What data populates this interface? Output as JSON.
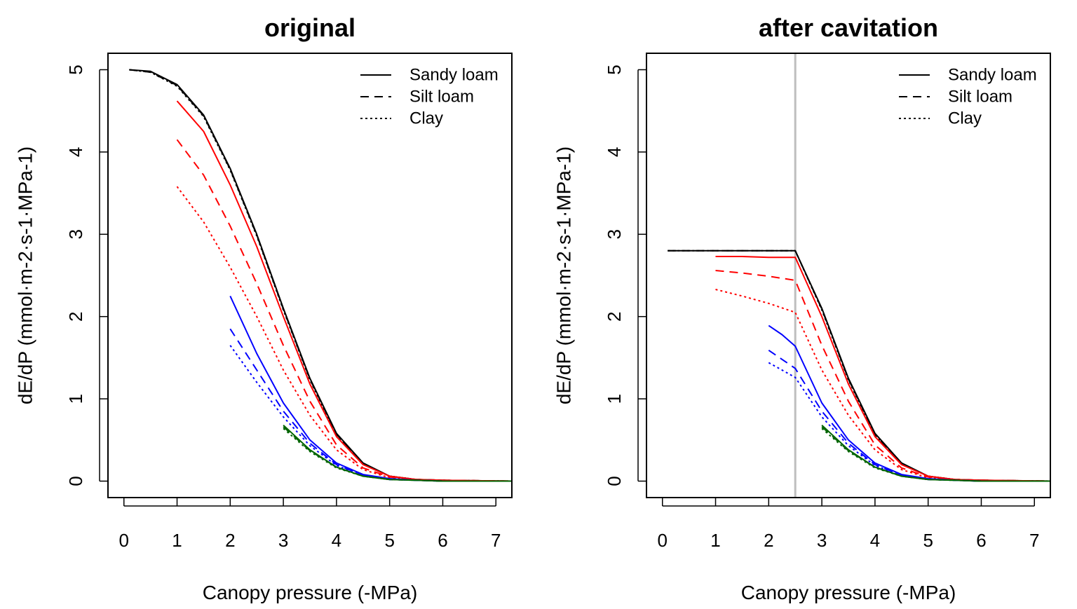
{
  "colors": {
    "black": "#000000",
    "red": "#ff0000",
    "blue": "#0000ff",
    "green": "#006400",
    "ref_line": "#bebebe"
  },
  "chart_data": [
    {
      "type": "line",
      "title": "original",
      "xlabel": "Canopy pressure (-MPa)",
      "ylabel": "dE/dP (mmol·m-2·s-1·MPa-1)",
      "xlim": [
        -0.3,
        7.3
      ],
      "ylim": [
        -0.2,
        5.2
      ],
      "xticks": [
        "0",
        "1",
        "2",
        "3",
        "4",
        "5",
        "6",
        "7"
      ],
      "yticks": [
        "0",
        "1",
        "2",
        "3",
        "4",
        "5"
      ],
      "legend": {
        "position": "top-right",
        "entries": [
          {
            "label": "Sandy loam",
            "linestyle": "solid"
          },
          {
            "label": "Silt loam",
            "linestyle": "dashed"
          },
          {
            "label": "Clay",
            "linestyle": "dotted"
          }
        ]
      },
      "vline": null,
      "series": [
        {
          "color": "black",
          "linestyle": "solid",
          "x": [
            0.1,
            0.5,
            1,
            1.5,
            2,
            2.5,
            3,
            3.5,
            4,
            4.5,
            5,
            5.5,
            6,
            7.3
          ],
          "y": [
            5.0,
            4.98,
            4.82,
            4.45,
            3.8,
            3.0,
            2.1,
            1.25,
            0.58,
            0.22,
            0.06,
            0.02,
            0.01,
            0.0
          ]
        },
        {
          "color": "black",
          "linestyle": "dashed",
          "x": [
            0.1,
            0.5,
            1,
            1.5,
            2,
            2.5,
            3,
            3.5,
            4,
            4.5,
            5,
            5.5,
            6,
            7.3
          ],
          "y": [
            5.0,
            4.97,
            4.81,
            4.44,
            3.79,
            2.99,
            2.09,
            1.24,
            0.57,
            0.21,
            0.06,
            0.02,
            0.01,
            0.0
          ]
        },
        {
          "color": "black",
          "linestyle": "dotted",
          "x": [
            0.1,
            0.5,
            1,
            1.5,
            2,
            2.5,
            3,
            3.5,
            4,
            4.5,
            5,
            5.5,
            6,
            7.3
          ],
          "y": [
            5.0,
            4.97,
            4.8,
            4.43,
            3.78,
            2.98,
            2.08,
            1.23,
            0.56,
            0.21,
            0.06,
            0.02,
            0.01,
            0.0
          ]
        },
        {
          "color": "red",
          "linestyle": "solid",
          "x": [
            1,
            1.5,
            2,
            2.5,
            3,
            3.5,
            4,
            4.5,
            5,
            5.5,
            6,
            7.3
          ],
          "y": [
            4.62,
            4.25,
            3.6,
            2.85,
            2.0,
            1.18,
            0.54,
            0.2,
            0.06,
            0.02,
            0.01,
            0.0
          ]
        },
        {
          "color": "red",
          "linestyle": "dashed",
          "x": [
            1,
            1.5,
            2,
            2.5,
            3,
            3.5,
            4,
            4.5,
            5,
            5.5,
            6,
            7.3
          ],
          "y": [
            4.15,
            3.72,
            3.1,
            2.4,
            1.65,
            0.97,
            0.44,
            0.16,
            0.05,
            0.02,
            0.01,
            0.0
          ]
        },
        {
          "color": "red",
          "linestyle": "dotted",
          "x": [
            1,
            1.5,
            2,
            2.5,
            3,
            3.5,
            4,
            4.5,
            5,
            5.5,
            6,
            7.3
          ],
          "y": [
            3.58,
            3.15,
            2.6,
            2.0,
            1.35,
            0.8,
            0.38,
            0.14,
            0.04,
            0.01,
            0.0,
            0.0
          ]
        },
        {
          "color": "blue",
          "linestyle": "solid",
          "x": [
            2,
            2.5,
            3,
            3.5,
            4,
            4.5,
            5,
            5.5,
            6,
            7.3
          ],
          "y": [
            2.25,
            1.55,
            0.95,
            0.5,
            0.22,
            0.08,
            0.03,
            0.01,
            0.0,
            0.0
          ]
        },
        {
          "color": "blue",
          "linestyle": "dashed",
          "x": [
            2,
            2.5,
            3,
            3.5,
            4,
            4.5,
            5,
            5.5,
            6,
            7.3
          ],
          "y": [
            1.85,
            1.35,
            0.85,
            0.46,
            0.2,
            0.07,
            0.02,
            0.01,
            0.0,
            0.0
          ]
        },
        {
          "color": "blue",
          "linestyle": "dotted",
          "x": [
            2,
            2.5,
            3,
            3.5,
            4,
            4.5,
            5,
            5.5,
            6,
            7.3
          ],
          "y": [
            1.65,
            1.2,
            0.78,
            0.43,
            0.19,
            0.07,
            0.02,
            0.01,
            0.0,
            0.0
          ]
        },
        {
          "color": "green",
          "linestyle": "solid",
          "x": [
            3,
            3.5,
            4,
            4.5,
            5,
            5.5,
            6,
            7.3
          ],
          "y": [
            0.68,
            0.38,
            0.17,
            0.06,
            0.02,
            0.01,
            0.0,
            0.0
          ]
        },
        {
          "color": "green",
          "linestyle": "dashed",
          "x": [
            3,
            3.5,
            4,
            4.5,
            5,
            5.5,
            6,
            7.3
          ],
          "y": [
            0.66,
            0.37,
            0.17,
            0.06,
            0.02,
            0.01,
            0.0,
            0.0
          ]
        },
        {
          "color": "green",
          "linestyle": "dotted",
          "x": [
            3,
            3.5,
            4,
            4.5,
            5,
            5.5,
            6,
            7.3
          ],
          "y": [
            0.64,
            0.36,
            0.16,
            0.06,
            0.02,
            0.01,
            0.0,
            0.0
          ]
        }
      ]
    },
    {
      "type": "line",
      "title": "after cavitation",
      "xlabel": "Canopy pressure (-MPa)",
      "ylabel": "dE/dP (mmol·m-2·s-1·MPa-1)",
      "xlim": [
        -0.3,
        7.3
      ],
      "ylim": [
        -0.2,
        5.2
      ],
      "xticks": [
        "0",
        "1",
        "2",
        "3",
        "4",
        "5",
        "6",
        "7"
      ],
      "yticks": [
        "0",
        "1",
        "2",
        "3",
        "4",
        "5"
      ],
      "legend": {
        "position": "top-right",
        "entries": [
          {
            "label": "Sandy loam",
            "linestyle": "solid"
          },
          {
            "label": "Silt loam",
            "linestyle": "dashed"
          },
          {
            "label": "Clay",
            "linestyle": "dotted"
          }
        ]
      },
      "vline": {
        "x": 2.5,
        "color": "ref_line"
      },
      "series": [
        {
          "color": "black",
          "linestyle": "solid",
          "x": [
            0.1,
            1,
            2,
            2.5,
            3,
            3.5,
            4,
            4.5,
            5,
            5.5,
            6,
            7.3
          ],
          "y": [
            2.8,
            2.8,
            2.8,
            2.8,
            2.1,
            1.25,
            0.58,
            0.22,
            0.06,
            0.02,
            0.01,
            0.0
          ]
        },
        {
          "color": "black",
          "linestyle": "dashed",
          "x": [
            0.1,
            1,
            2,
            2.5,
            3,
            3.5,
            4,
            4.5,
            5,
            5.5,
            6,
            7.3
          ],
          "y": [
            2.8,
            2.8,
            2.8,
            2.8,
            2.09,
            1.24,
            0.57,
            0.21,
            0.06,
            0.02,
            0.01,
            0.0
          ]
        },
        {
          "color": "black",
          "linestyle": "dotted",
          "x": [
            0.1,
            1,
            2,
            2.5,
            3,
            3.5,
            4,
            4.5,
            5,
            5.5,
            6,
            7.3
          ],
          "y": [
            2.8,
            2.8,
            2.8,
            2.8,
            2.08,
            1.23,
            0.56,
            0.21,
            0.06,
            0.02,
            0.01,
            0.0
          ]
        },
        {
          "color": "red",
          "linestyle": "solid",
          "x": [
            1,
            1.5,
            2,
            2.5,
            3,
            3.5,
            4,
            4.5,
            5,
            5.5,
            6,
            7.3
          ],
          "y": [
            2.73,
            2.73,
            2.72,
            2.72,
            2.0,
            1.18,
            0.54,
            0.2,
            0.06,
            0.02,
            0.01,
            0.0
          ]
        },
        {
          "color": "red",
          "linestyle": "dashed",
          "x": [
            1,
            1.5,
            2,
            2.5,
            3,
            3.5,
            4,
            4.5,
            5,
            5.5,
            6,
            7.3
          ],
          "y": [
            2.56,
            2.53,
            2.49,
            2.44,
            1.65,
            0.97,
            0.44,
            0.16,
            0.05,
            0.02,
            0.01,
            0.0
          ]
        },
        {
          "color": "red",
          "linestyle": "dotted",
          "x": [
            1,
            1.5,
            2,
            2.5,
            3,
            3.5,
            4,
            4.5,
            5,
            5.5,
            6,
            7.3
          ],
          "y": [
            2.33,
            2.25,
            2.16,
            2.05,
            1.35,
            0.8,
            0.38,
            0.14,
            0.04,
            0.01,
            0.0,
            0.0
          ]
        },
        {
          "color": "blue",
          "linestyle": "solid",
          "x": [
            2,
            2.25,
            2.5,
            3,
            3.5,
            4,
            4.5,
            5,
            5.5,
            6,
            7.3
          ],
          "y": [
            1.89,
            1.78,
            1.64,
            0.95,
            0.5,
            0.22,
            0.08,
            0.03,
            0.01,
            0.0,
            0.0
          ]
        },
        {
          "color": "blue",
          "linestyle": "dashed",
          "x": [
            2,
            2.25,
            2.5,
            3,
            3.5,
            4,
            4.5,
            5,
            5.5,
            6,
            7.3
          ],
          "y": [
            1.59,
            1.48,
            1.37,
            0.85,
            0.46,
            0.2,
            0.07,
            0.02,
            0.01,
            0.0,
            0.0
          ]
        },
        {
          "color": "blue",
          "linestyle": "dotted",
          "x": [
            2,
            2.25,
            2.5,
            3,
            3.5,
            4,
            4.5,
            5,
            5.5,
            6,
            7.3
          ],
          "y": [
            1.44,
            1.35,
            1.26,
            0.78,
            0.43,
            0.19,
            0.07,
            0.02,
            0.01,
            0.0,
            0.0
          ]
        },
        {
          "color": "green",
          "linestyle": "solid",
          "x": [
            3,
            3.5,
            4,
            4.5,
            5,
            5.5,
            6,
            7.3
          ],
          "y": [
            0.68,
            0.38,
            0.17,
            0.06,
            0.02,
            0.01,
            0.0,
            0.0
          ]
        },
        {
          "color": "green",
          "linestyle": "dashed",
          "x": [
            3,
            3.5,
            4,
            4.5,
            5,
            5.5,
            6,
            7.3
          ],
          "y": [
            0.66,
            0.37,
            0.17,
            0.06,
            0.02,
            0.01,
            0.0,
            0.0
          ]
        },
        {
          "color": "green",
          "linestyle": "dotted",
          "x": [
            3,
            3.5,
            4,
            4.5,
            5,
            5.5,
            6,
            7.3
          ],
          "y": [
            0.64,
            0.36,
            0.16,
            0.06,
            0.02,
            0.01,
            0.0,
            0.0
          ]
        }
      ]
    }
  ]
}
